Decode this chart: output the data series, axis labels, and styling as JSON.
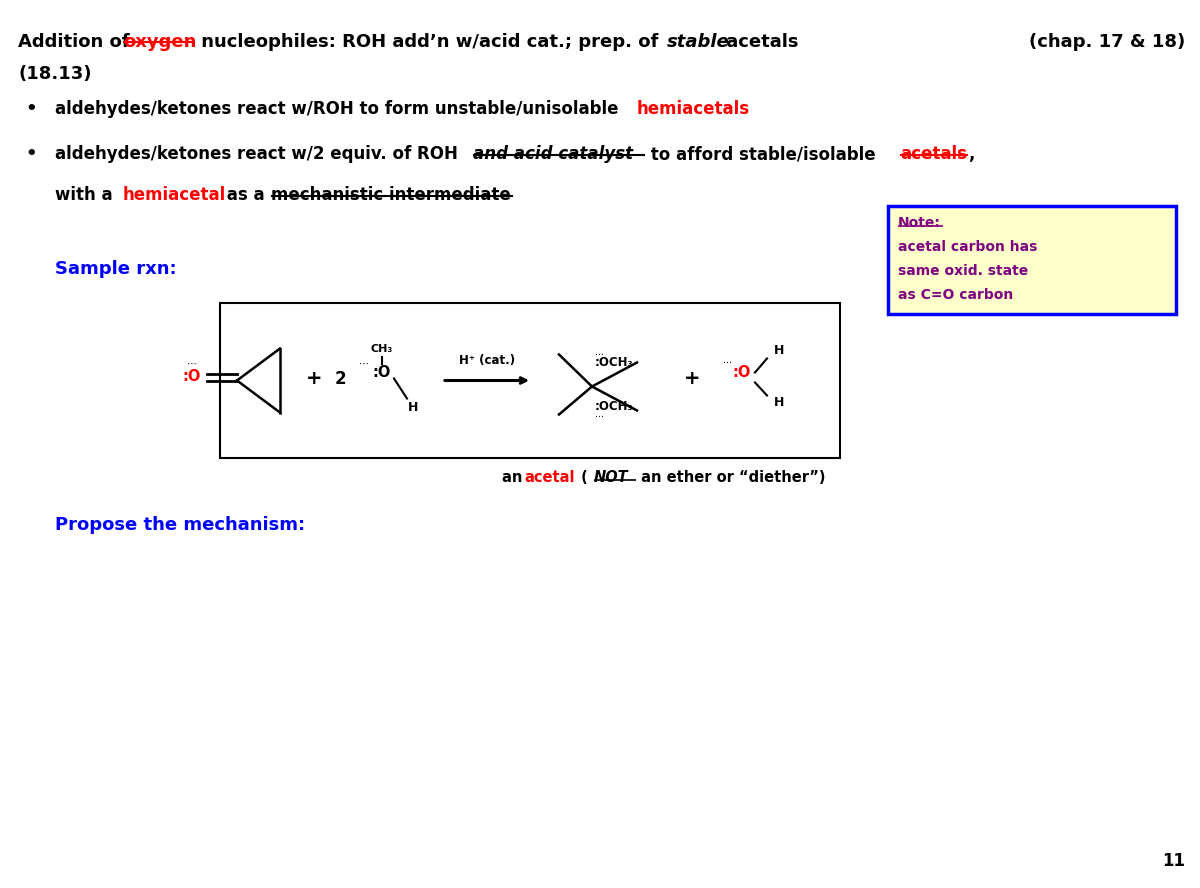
{
  "title_pre": "Addition of ",
  "title_oxygen": "oxygen",
  "title_mid": " nucleophiles: ROH add’n w/acid cat.; prep. of ",
  "title_italic": "stable",
  "title_end": " acetals",
  "title_chap": "(chap. 17 & 18)",
  "subtitle": "(18.13)",
  "bullet1_pre": "aldehydes/ketones react w/ROH to form unstable/unisolable ",
  "bullet1_red": "hemiacetals",
  "bullet2_pre": "aldehydes/ketones react w/2 equiv. of ROH ",
  "bullet2_biu": "and acid catalyst",
  "bullet2_mid": " to afford stable/isolable ",
  "bullet2_red": "acetals",
  "bullet2_end": ",",
  "bullet2b_pre": "with a ",
  "bullet2b_red": "hemiacetal",
  "bullet2b_mid": " as a ",
  "bullet2b_ul": "mechanistic intermediate",
  "sample_label": "Sample rxn:",
  "propose_label": "Propose the mechanism:",
  "note_title": "Note:",
  "note_line1": "acetal carbon has",
  "note_line2": "same oxid. state",
  "note_line3": "as C=O carbon",
  "acetal_label_pre": "an ",
  "acetal_label_red": "acetal",
  "acetal_label_mid": " (",
  "acetal_label_not": "NOT",
  "acetal_label_end": " an ether or “diether”)",
  "page_num": "11",
  "bg_color": "#ffffff",
  "text_color": "#000000",
  "red_color": "#ff0000",
  "blue_color": "#0000ff",
  "purple_color": "#800080",
  "note_bg": "#ffffcc",
  "note_border": "#0000ff"
}
